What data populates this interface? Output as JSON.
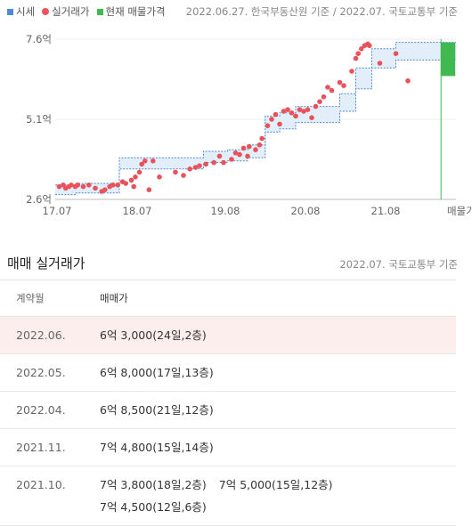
{
  "legend": [
    {
      "label": "시세",
      "color": "#4f8ad6",
      "shape": "square"
    },
    {
      "label": "실거래가",
      "color": "#e9525a",
      "shape": "dot"
    },
    {
      "label": "현재 매물가격",
      "color": "#3fb950",
      "shape": "square"
    }
  ],
  "source": "2022.06.27. 한국부동산원 기준 / 2022.07. 국토교통부 기준",
  "chart_data": {
    "type": "scatter",
    "x_tick_labels": [
      "17.07",
      "18.07",
      "19.08",
      "20.08",
      "21.08",
      "매물가격"
    ],
    "y_tick_labels": [
      "7.6억",
      "5.1억",
      "2.6억"
    ],
    "y_ticks": [
      7.6,
      5.1,
      2.6
    ],
    "ylim": [
      2.6,
      7.6
    ],
    "xlim": [
      2017.5,
      2022.5
    ],
    "colors": {
      "market": "#4f8ad6",
      "band": "#e2effa",
      "trade": "#e9525a",
      "listing": "#3fb950"
    },
    "market_price": {
      "upper": [
        [
          2017.5,
          3.05
        ],
        [
          2017.75,
          3.1
        ],
        [
          2018.2,
          3.1
        ],
        [
          2018.3,
          3.9
        ],
        [
          2018.55,
          3.9
        ],
        [
          2018.85,
          3.9
        ],
        [
          2019.35,
          4.1
        ],
        [
          2019.65,
          4.15
        ],
        [
          2019.9,
          4.3
        ],
        [
          2020.05,
          4.3
        ],
        [
          2020.12,
          5.2
        ],
        [
          2020.3,
          5.3
        ],
        [
          2020.5,
          5.5
        ],
        [
          2020.85,
          5.5
        ],
        [
          2021.05,
          5.9
        ],
        [
          2021.25,
          6.7
        ],
        [
          2021.45,
          7.3
        ],
        [
          2021.75,
          7.5
        ],
        [
          2022.1,
          7.5
        ],
        [
          2022.5,
          7.5
        ]
      ],
      "lower": [
        [
          2017.5,
          2.75
        ],
        [
          2017.75,
          2.8
        ],
        [
          2018.2,
          2.8
        ],
        [
          2018.3,
          3.55
        ],
        [
          2018.55,
          3.55
        ],
        [
          2018.85,
          3.55
        ],
        [
          2019.35,
          3.75
        ],
        [
          2019.65,
          3.8
        ],
        [
          2019.9,
          3.9
        ],
        [
          2020.05,
          3.9
        ],
        [
          2020.12,
          4.7
        ],
        [
          2020.3,
          4.8
        ],
        [
          2020.5,
          5.0
        ],
        [
          2020.85,
          5.0
        ],
        [
          2021.05,
          5.35
        ],
        [
          2021.25,
          6.05
        ],
        [
          2021.45,
          6.7
        ],
        [
          2021.75,
          6.95
        ],
        [
          2022.1,
          6.95
        ],
        [
          2022.5,
          6.95
        ]
      ]
    },
    "trades": [
      [
        2017.55,
        3.0
      ],
      [
        2017.6,
        3.05
      ],
      [
        2017.63,
        2.95
      ],
      [
        2017.67,
        3.0
      ],
      [
        2017.7,
        3.05
      ],
      [
        2017.75,
        3.0
      ],
      [
        2017.78,
        3.05
      ],
      [
        2017.85,
        3.0
      ],
      [
        2017.92,
        3.05
      ],
      [
        2018.0,
        2.95
      ],
      [
        2018.08,
        2.85
      ],
      [
        2018.12,
        2.9
      ],
      [
        2018.18,
        3.0
      ],
      [
        2018.22,
        3.05
      ],
      [
        2018.28,
        3.05
      ],
      [
        2018.34,
        3.15
      ],
      [
        2018.38,
        3.1
      ],
      [
        2018.45,
        3.2
      ],
      [
        2018.48,
        3.0
      ],
      [
        2018.5,
        3.3
      ],
      [
        2018.55,
        3.45
      ],
      [
        2018.58,
        3.7
      ],
      [
        2018.62,
        3.8
      ],
      [
        2018.67,
        2.9
      ],
      [
        2018.72,
        3.8
      ],
      [
        2018.8,
        3.3
      ],
      [
        2019.0,
        3.45
      ],
      [
        2019.1,
        3.35
      ],
      [
        2019.18,
        3.55
      ],
      [
        2019.25,
        3.6
      ],
      [
        2019.3,
        3.65
      ],
      [
        2019.38,
        3.7
      ],
      [
        2019.48,
        3.75
      ],
      [
        2019.55,
        3.95
      ],
      [
        2019.6,
        3.75
      ],
      [
        2019.7,
        3.85
      ],
      [
        2019.75,
        4.05
      ],
      [
        2019.8,
        4.0
      ],
      [
        2019.85,
        4.2
      ],
      [
        2019.9,
        3.95
      ],
      [
        2019.92,
        4.25
      ],
      [
        2020.0,
        4.15
      ],
      [
        2020.05,
        4.3
      ],
      [
        2020.08,
        4.5
      ],
      [
        2020.15,
        4.9
      ],
      [
        2020.2,
        5.1
      ],
      [
        2020.25,
        5.25
      ],
      [
        2020.3,
        4.95
      ],
      [
        2020.35,
        5.35
      ],
      [
        2020.4,
        5.4
      ],
      [
        2020.45,
        5.3
      ],
      [
        2020.5,
        5.2
      ],
      [
        2020.55,
        5.4
      ],
      [
        2020.6,
        5.35
      ],
      [
        2020.65,
        5.4
      ],
      [
        2020.7,
        5.15
      ],
      [
        2020.75,
        5.5
      ],
      [
        2020.8,
        5.65
      ],
      [
        2020.85,
        5.8
      ],
      [
        2020.9,
        6.1
      ],
      [
        2020.95,
        6.0
      ],
      [
        2021.05,
        6.25
      ],
      [
        2021.1,
        6.15
      ],
      [
        2021.2,
        6.6
      ],
      [
        2021.25,
        7.0
      ],
      [
        2021.28,
        7.15
      ],
      [
        2021.32,
        7.3
      ],
      [
        2021.36,
        7.4
      ],
      [
        2021.4,
        7.45
      ],
      [
        2021.42,
        7.4
      ],
      [
        2021.55,
        6.85
      ],
      [
        2021.75,
        7.15
      ],
      [
        2021.9,
        6.3
      ]
    ],
    "listing": {
      "x": 2022.38,
      "ymin": 6.45,
      "ymax": 7.5
    }
  },
  "table": {
    "title": "매매 실거래가",
    "source": "2022.07. 국토교통부 기준",
    "headers": [
      "계약월",
      "매매가"
    ],
    "rows": [
      {
        "month": "2022.06.",
        "entries": [
          "6억 3,000(24일,2층)"
        ],
        "highlight": true
      },
      {
        "month": "2022.05.",
        "entries": [
          "6억 8,000(17일,13층)"
        ],
        "highlight": false
      },
      {
        "month": "2022.04.",
        "entries": [
          "6억 8,500(21일,12층)"
        ],
        "highlight": false
      },
      {
        "month": "2021.11.",
        "entries": [
          "7억 4,800(15일,14층)"
        ],
        "highlight": false
      },
      {
        "month": "2021.10.",
        "entries": [
          "7억 3,800(18일,2층)",
          "7억 5,000(15일,12층)",
          "7억 4,500(12일,6층)"
        ],
        "highlight": false
      }
    ]
  }
}
